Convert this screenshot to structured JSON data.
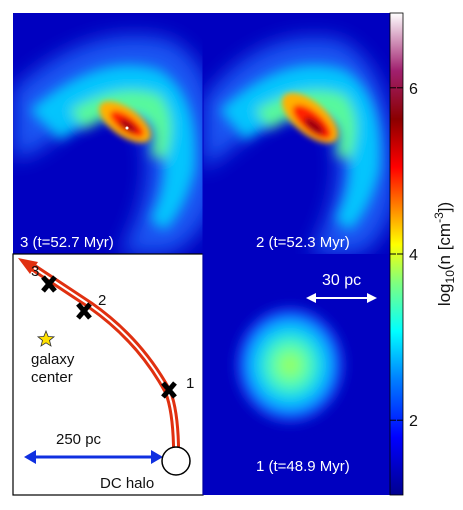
{
  "panels": {
    "top_left_label": "3 (t=52.7 Myr)",
    "top_right_label": "2 (t=52.3 Myr)",
    "bottom_right_label": "1 (t=48.9 Myr)",
    "scale_label": "30 pc"
  },
  "diagram": {
    "markers": [
      "3",
      "2",
      "1"
    ],
    "star_label_line1": "galaxy",
    "star_label_line2": "center",
    "distance_label": "250 pc",
    "halo_label": "DC halo"
  },
  "colorbar": {
    "label_base": "log",
    "label_sub": "10",
    "label_mid": "(n [cm",
    "label_sup": "-3",
    "label_end": "])",
    "ticks": [
      {
        "value": "6",
        "level": 6
      },
      {
        "value": "4",
        "level": 4
      },
      {
        "value": "2",
        "level": 2
      }
    ],
    "range": [
      1.1,
      6.9
    ],
    "colors": [
      "#00008f",
      "#0000ff",
      "#007fff",
      "#00ffff",
      "#7fff7f",
      "#ffff00",
      "#ff7f00",
      "#ff0000",
      "#8b0000",
      "#a0206e",
      "#ffffff"
    ]
  }
}
